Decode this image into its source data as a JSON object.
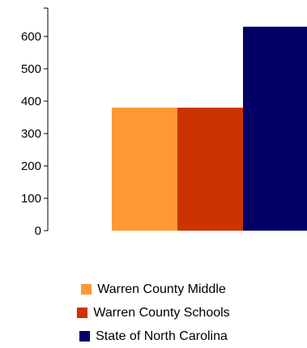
{
  "chart_data": {
    "type": "bar",
    "categories": [
      ""
    ],
    "series": [
      {
        "name": "Warren County Middle",
        "values": [
          380
        ],
        "color": "#FF9933"
      },
      {
        "name": "Warren County Schools",
        "values": [
          380
        ],
        "color": "#CC3300"
      },
      {
        "name": "State of North Carolina",
        "values": [
          630
        ],
        "color": "#000066"
      }
    ],
    "yticks": [
      0,
      100,
      200,
      300,
      400,
      500,
      600
    ],
    "ytick_labels": [
      "0",
      "100",
      "200",
      "300",
      "400",
      "500",
      "600"
    ],
    "ylim": [
      0,
      640
    ],
    "grid": false,
    "legend_position": "bottom"
  }
}
